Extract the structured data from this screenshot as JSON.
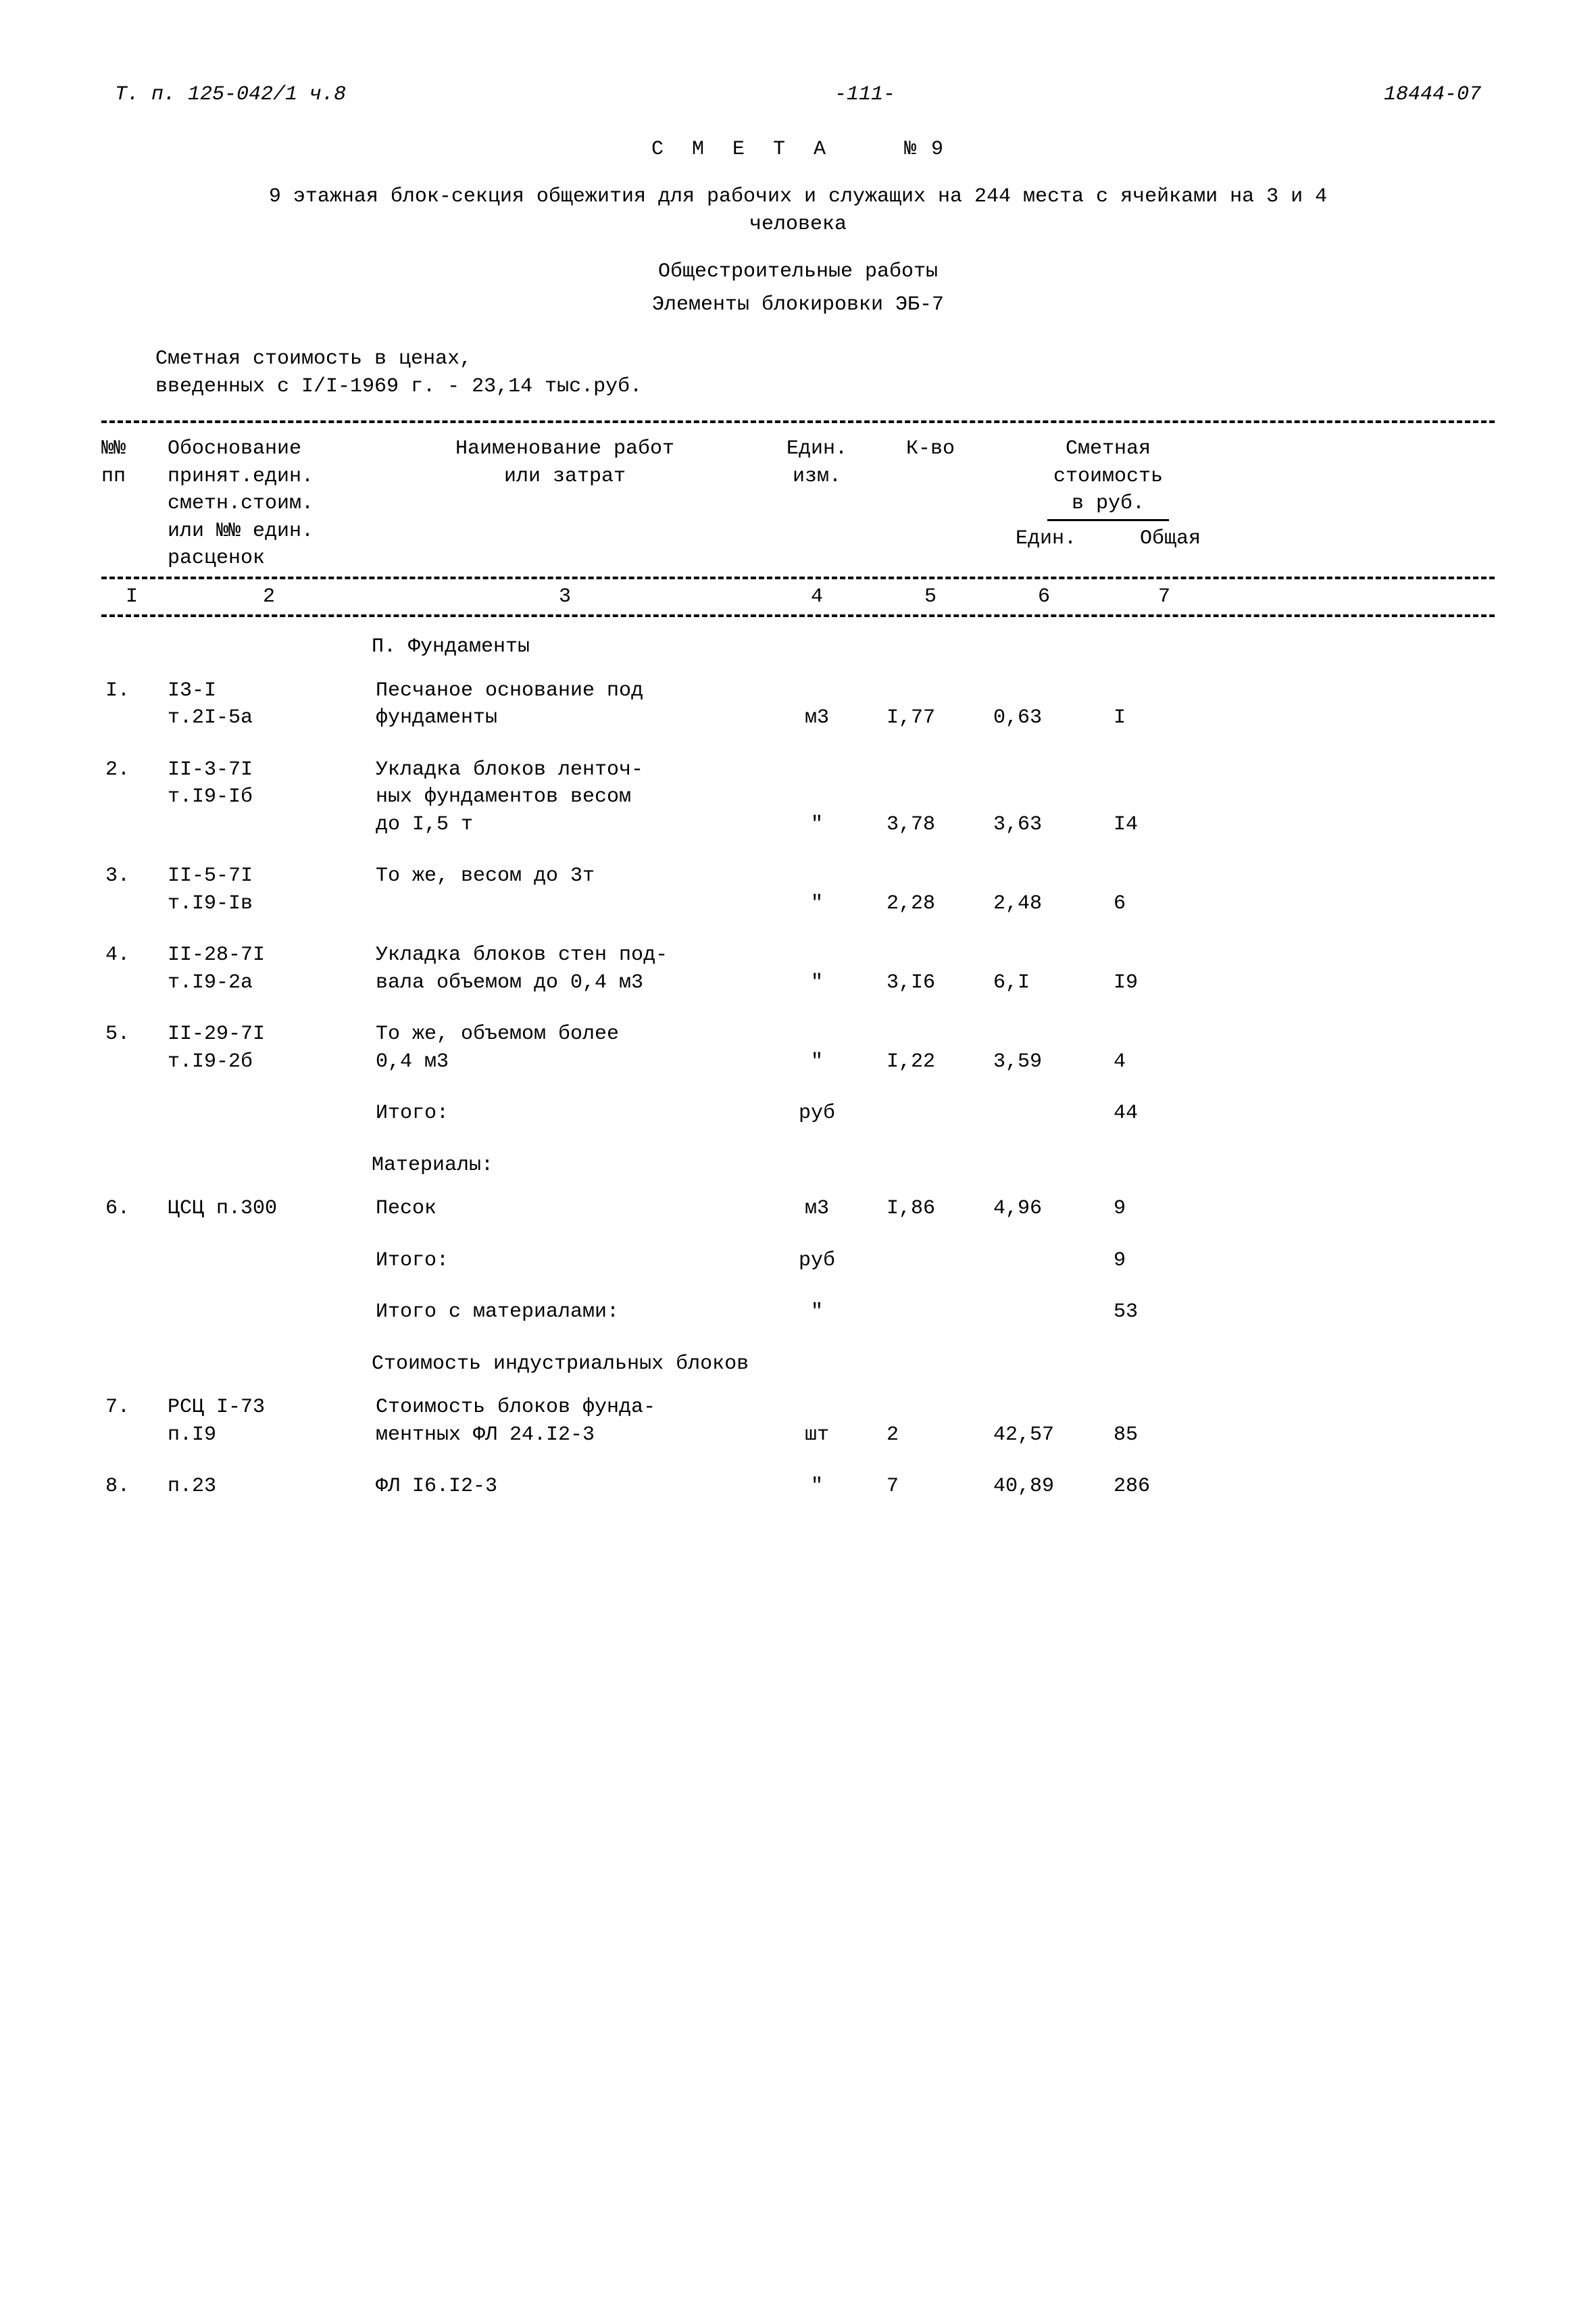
{
  "colors": {
    "background": "#ffffff",
    "text": "#000000",
    "line": "#000000"
  },
  "typography": {
    "font_family": "Courier New",
    "base_fontsize_pt": 22
  },
  "header": {
    "left": "Т. п. 125-042/1 ч.8",
    "center": "-111-",
    "right": "18444-07"
  },
  "title": {
    "main": "С М Е Т А",
    "number": "№ 9"
  },
  "subtitle": "9 этажная блок-секция общежития для рабочих и служащих на 244 места с ячейками на 3 и 4 человека",
  "subheadings": {
    "line1": "Общестроительные работы",
    "line2": "Элементы блокировки ЭБ-7"
  },
  "cost_note": {
    "line1": "Сметная стоимость в ценах,",
    "line2": "введенных с I/I-1969 г. - 23,14 тыс.руб."
  },
  "table": {
    "columns": {
      "c1": "№№\nпп",
      "c2": "Обоснование принят.един. сметн.стоим. или №№ един. расценок",
      "c3": "Наименование работ или затрат",
      "c4": "Един. изм.",
      "c5": "К-во",
      "c6_parent": "Сметная стоимость в руб.",
      "c6": "Един.",
      "c7": "Общая"
    },
    "col_numbers": [
      "I",
      "2",
      "3",
      "4",
      "5",
      "6",
      "7"
    ],
    "sections": [
      {
        "title": "П. Фундаменты",
        "rows": [
          {
            "n": "I.",
            "basis": "I3-I\nт.2I-5а",
            "name": "Песчаное основание под фундаменты",
            "unit": "м3",
            "qty": "I,77",
            "unit_cost": "0,63",
            "total": "I"
          },
          {
            "n": "2.",
            "basis": "II-3-7I\nт.I9-Iб",
            "name": "Укладка блоков ленточ-\nных фундаментов весом\nдо I,5 т",
            "unit": "\"",
            "qty": "3,78",
            "unit_cost": "3,63",
            "total": "I4"
          },
          {
            "n": "3.",
            "basis": "II-5-7I\nт.I9-Iв",
            "name": "То же, весом до 3т",
            "unit": "\"",
            "qty": "2,28",
            "unit_cost": "2,48",
            "total": "6"
          },
          {
            "n": "4.",
            "basis": "II-28-7I\nт.I9-2а",
            "name": "Укладка блоков стен под-\nвала объемом до 0,4 м3",
            "unit": "\"",
            "qty": "3,I6",
            "unit_cost": "6,I",
            "total": "I9"
          },
          {
            "n": "5.",
            "basis": "II-29-7I\nт.I9-2б",
            "name": "То же, объемом более\n0,4 м3",
            "unit": "\"",
            "qty": "I,22",
            "unit_cost": "3,59",
            "total": "4"
          },
          {
            "n": "",
            "basis": "",
            "name": "Итого:",
            "unit": "руб",
            "qty": "",
            "unit_cost": "",
            "total": "44"
          }
        ]
      },
      {
        "title": "Материалы:",
        "rows": [
          {
            "n": "6.",
            "basis": "ЦСЦ п.300",
            "name": "Песок",
            "unit": "м3",
            "qty": "I,86",
            "unit_cost": "4,96",
            "total": "9"
          },
          {
            "n": "",
            "basis": "",
            "name": "Итого:",
            "unit": "руб",
            "qty": "",
            "unit_cost": "",
            "total": "9"
          },
          {
            "n": "",
            "basis": "",
            "name": "Итого с материалами:",
            "unit": "\"",
            "qty": "",
            "unit_cost": "",
            "total": "53"
          }
        ]
      },
      {
        "title": "Стоимость индустриальных блоков",
        "rows": [
          {
            "n": "7.",
            "basis": "РСЦ I-73\nп.I9",
            "name": "Стоимость блоков фунда-\nментных ФЛ 24.I2-3",
            "unit": "шт",
            "qty": "2",
            "unit_cost": "42,57",
            "total": "85"
          },
          {
            "n": "8.",
            "basis": "п.23",
            "name": "ФЛ I6.I2-3",
            "unit": "\"",
            "qty": "7",
            "unit_cost": "40,89",
            "total": "286"
          }
        ]
      }
    ]
  }
}
